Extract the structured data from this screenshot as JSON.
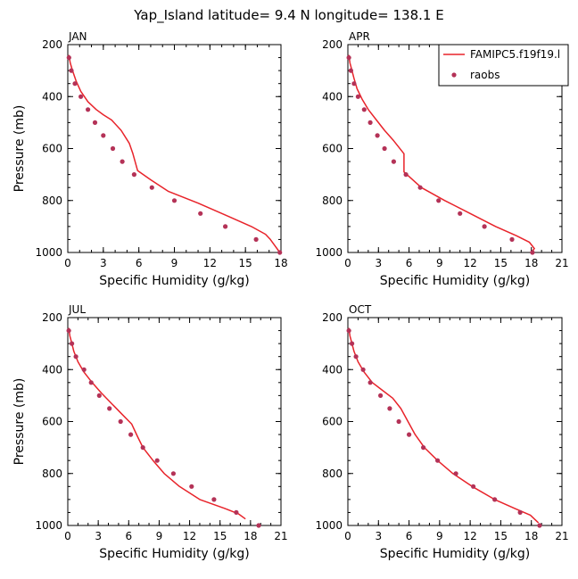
{
  "title": "Yap_Island  latitude= 9.4 N longitude= 138.1 E",
  "colors": {
    "model": "#e8232a",
    "obs": "#b43257",
    "axis": "#000000"
  },
  "legend": {
    "model_label": "FAMIPC5.f19f19.l",
    "obs_label": "raobs"
  },
  "chart_data": [
    {
      "type": "line",
      "panel": "JAN",
      "xlabel": "Specific Humidity (g/kg)",
      "ylabel": "Pressure (mb)",
      "xlim": [
        0,
        18
      ],
      "ylim": [
        1000,
        200
      ],
      "xticks": [
        0,
        3,
        6,
        9,
        12,
        15,
        18
      ],
      "yticks": [
        200,
        400,
        600,
        800,
        1000
      ],
      "series": [
        {
          "name": "FAMIPC5.f19f19.l",
          "kind": "line",
          "points": [
            [
              0.1,
              240
            ],
            [
              0.2,
              270
            ],
            [
              0.4,
              300
            ],
            [
              0.7,
              340
            ],
            [
              1.1,
              380
            ],
            [
              1.7,
              420
            ],
            [
              2.4,
              450
            ],
            [
              3.0,
              470
            ],
            [
              3.7,
              490
            ],
            [
              4.5,
              530
            ],
            [
              5.2,
              580
            ],
            [
              5.5,
              620
            ],
            [
              5.9,
              685
            ],
            [
              7.0,
              720
            ],
            [
              8.5,
              765
            ],
            [
              11.0,
              810
            ],
            [
              13.5,
              860
            ],
            [
              15.5,
              900
            ],
            [
              16.7,
              930
            ],
            [
              17.1,
              950
            ],
            [
              17.5,
              975
            ],
            [
              17.9,
              1000
            ]
          ]
        },
        {
          "name": "raobs",
          "kind": "points",
          "points": [
            [
              0.1,
              250
            ],
            [
              0.3,
              300
            ],
            [
              0.6,
              350
            ],
            [
              1.1,
              400
            ],
            [
              1.7,
              450
            ],
            [
              2.3,
              500
            ],
            [
              3.0,
              550
            ],
            [
              3.8,
              600
            ],
            [
              4.6,
              650
            ],
            [
              5.6,
              700
            ],
            [
              7.1,
              750
            ],
            [
              9.0,
              800
            ],
            [
              11.2,
              850
            ],
            [
              13.3,
              900
            ],
            [
              15.9,
              950
            ],
            [
              17.9,
              1000
            ]
          ]
        }
      ]
    },
    {
      "type": "line",
      "panel": "APR",
      "xlabel": "Specific Humidity (g/kg)",
      "ylabel": "",
      "xlim": [
        0,
        21
      ],
      "ylim": [
        1000,
        200
      ],
      "xticks": [
        0,
        3,
        6,
        9,
        12,
        15,
        18,
        21
      ],
      "yticks": [
        200,
        400,
        600,
        800,
        1000
      ],
      "series": [
        {
          "name": "FAMIPC5.f19f19.l",
          "kind": "line",
          "points": [
            [
              0.1,
              240
            ],
            [
              0.2,
              270
            ],
            [
              0.4,
              300
            ],
            [
              0.6,
              330
            ],
            [
              0.9,
              370
            ],
            [
              1.4,
              410
            ],
            [
              2.0,
              450
            ],
            [
              2.8,
              490
            ],
            [
              3.6,
              530
            ],
            [
              4.5,
              570
            ],
            [
              5.5,
              620
            ],
            [
              5.5,
              690
            ],
            [
              7.2,
              750
            ],
            [
              9.5,
              800
            ],
            [
              12.0,
              850
            ],
            [
              14.5,
              900
            ],
            [
              16.5,
              935
            ],
            [
              17.8,
              960
            ],
            [
              18.3,
              985
            ],
            [
              18.0,
              1000
            ]
          ]
        },
        {
          "name": "raobs",
          "kind": "points",
          "points": [
            [
              0.1,
              250
            ],
            [
              0.3,
              300
            ],
            [
              0.6,
              350
            ],
            [
              1.0,
              400
            ],
            [
              1.6,
              450
            ],
            [
              2.2,
              500
            ],
            [
              2.9,
              550
            ],
            [
              3.6,
              600
            ],
            [
              4.5,
              650
            ],
            [
              5.7,
              700
            ],
            [
              7.1,
              750
            ],
            [
              8.9,
              800
            ],
            [
              11.0,
              850
            ],
            [
              13.4,
              900
            ],
            [
              16.1,
              950
            ],
            [
              18.1,
              1000
            ]
          ]
        }
      ]
    },
    {
      "type": "line",
      "panel": "JUL",
      "xlabel": "Specific Humidity (g/kg)",
      "ylabel": "Pressure (mb)",
      "xlim": [
        0,
        21
      ],
      "ylim": [
        1000,
        200
      ],
      "xticks": [
        0,
        3,
        6,
        9,
        12,
        15,
        18,
        21
      ],
      "yticks": [
        200,
        400,
        600,
        800,
        1000
      ],
      "series": [
        {
          "name": "FAMIPC5.f19f19.l",
          "kind": "line",
          "points": [
            [
              0.1,
              240
            ],
            [
              0.2,
              270
            ],
            [
              0.4,
              300
            ],
            [
              0.6,
              330
            ],
            [
              1.0,
              370
            ],
            [
              1.6,
              410
            ],
            [
              2.4,
              450
            ],
            [
              3.3,
              490
            ],
            [
              4.3,
              530
            ],
            [
              5.3,
              570
            ],
            [
              6.3,
              610
            ],
            [
              6.9,
              660
            ],
            [
              7.4,
              700
            ],
            [
              8.4,
              750
            ],
            [
              9.5,
              800
            ],
            [
              11.0,
              850
            ],
            [
              13.0,
              900
            ],
            [
              15.5,
              935
            ],
            [
              16.8,
              955
            ],
            [
              17.5,
              975
            ]
          ]
        },
        {
          "name": "raobs",
          "kind": "points",
          "points": [
            [
              0.1,
              250
            ],
            [
              0.4,
              300
            ],
            [
              0.8,
              350
            ],
            [
              1.6,
              400
            ],
            [
              2.3,
              450
            ],
            [
              3.1,
              500
            ],
            [
              4.1,
              550
            ],
            [
              5.2,
              600
            ],
            [
              6.2,
              650
            ],
            [
              7.4,
              700
            ],
            [
              8.8,
              750
            ],
            [
              10.4,
              800
            ],
            [
              12.2,
              850
            ],
            [
              14.4,
              900
            ],
            [
              16.6,
              950
            ],
            [
              18.8,
              1000
            ]
          ]
        }
      ]
    },
    {
      "type": "line",
      "panel": "OCT",
      "xlabel": "Specific Humidity (g/kg)",
      "ylabel": "",
      "xlim": [
        0,
        21
      ],
      "ylim": [
        1000,
        200
      ],
      "xticks": [
        0,
        3,
        6,
        9,
        12,
        15,
        18,
        21
      ],
      "yticks": [
        200,
        400,
        600,
        800,
        1000
      ],
      "series": [
        {
          "name": "FAMIPC5.f19f19.l",
          "kind": "line",
          "points": [
            [
              0.1,
              240
            ],
            [
              0.2,
              270
            ],
            [
              0.4,
              300
            ],
            [
              0.6,
              330
            ],
            [
              1.0,
              370
            ],
            [
              1.6,
              410
            ],
            [
              2.4,
              450
            ],
            [
              3.4,
              480
            ],
            [
              4.4,
              510
            ],
            [
              5.2,
              550
            ],
            [
              5.9,
              600
            ],
            [
              6.6,
              650
            ],
            [
              7.5,
              700
            ],
            [
              8.8,
              750
            ],
            [
              10.3,
              800
            ],
            [
              12.2,
              850
            ],
            [
              14.4,
              900
            ],
            [
              16.4,
              935
            ],
            [
              17.9,
              960
            ],
            [
              18.7,
              990
            ]
          ]
        },
        {
          "name": "raobs",
          "kind": "points",
          "points": [
            [
              0.1,
              250
            ],
            [
              0.4,
              300
            ],
            [
              0.8,
              350
            ],
            [
              1.5,
              400
            ],
            [
              2.2,
              450
            ],
            [
              3.2,
              500
            ],
            [
              4.1,
              550
            ],
            [
              5.0,
              600
            ],
            [
              6.0,
              650
            ],
            [
              7.4,
              700
            ],
            [
              8.8,
              750
            ],
            [
              10.6,
              800
            ],
            [
              12.3,
              850
            ],
            [
              14.4,
              900
            ],
            [
              16.9,
              950
            ],
            [
              18.8,
              1000
            ]
          ]
        }
      ]
    }
  ]
}
